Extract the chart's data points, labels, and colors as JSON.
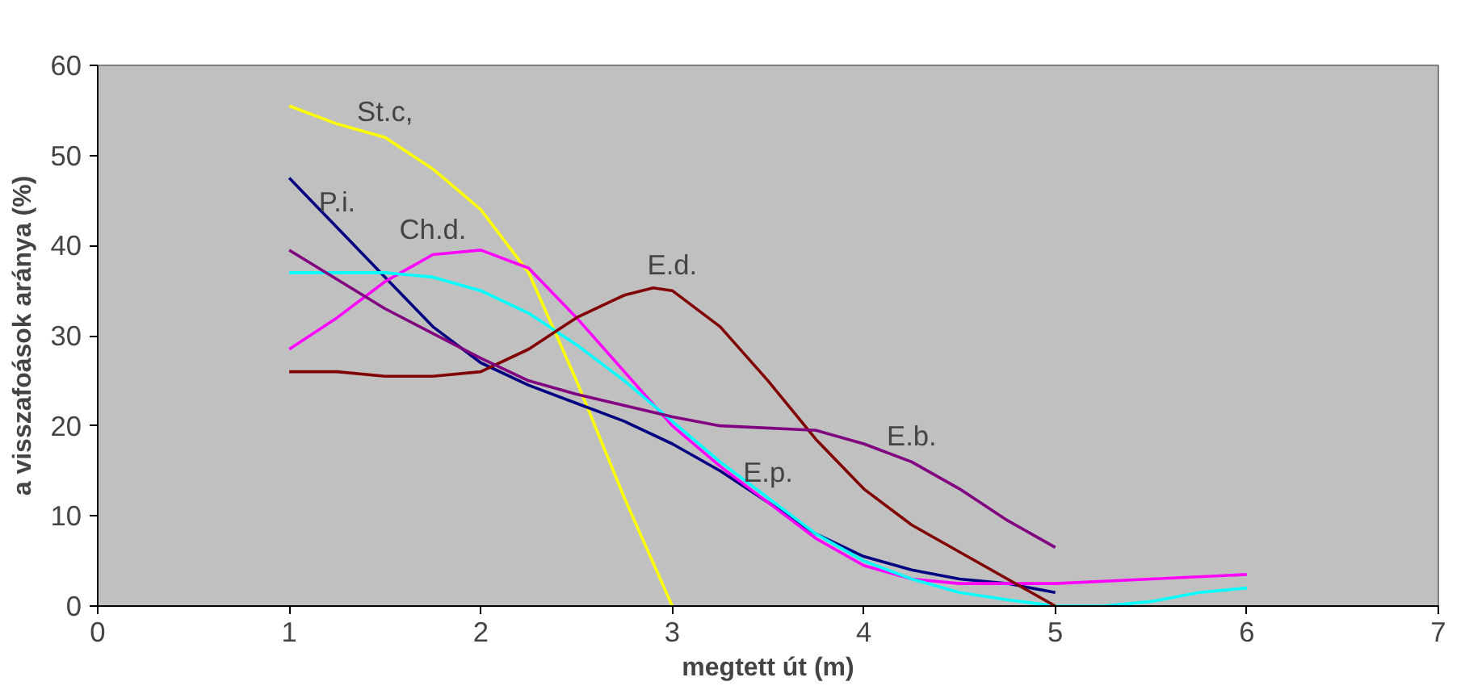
{
  "chart_data": {
    "type": "line",
    "xlabel": "megtett út (m)",
    "ylabel": "a visszafoások aránya (%)",
    "xlim": [
      0,
      7
    ],
    "xticks": [
      0,
      1,
      2,
      3,
      4,
      5,
      6,
      7
    ],
    "ylim": [
      0,
      60
    ],
    "yticks": [
      0,
      10,
      20,
      30,
      40,
      50,
      60
    ],
    "grid": false,
    "marker": "none",
    "line_style": "solid",
    "series": [
      {
        "color": "#ffff00",
        "x": [
          1,
          1.25,
          1.5,
          1.75,
          2,
          2.25,
          2.5,
          2.75,
          3
        ],
        "values": [
          55.5,
          53.5,
          52,
          48.5,
          44,
          37,
          25,
          12,
          0
        ]
      },
      {
        "color": "#000080",
        "x": [
          1,
          1.25,
          1.5,
          1.75,
          2,
          2.25,
          2.5,
          2.75,
          3,
          3.25,
          3.5,
          3.75,
          4,
          4.25,
          4.5,
          4.75,
          5
        ],
        "values": [
          47.5,
          42,
          36.5,
          31,
          27,
          24.5,
          22.5,
          20.5,
          18,
          15,
          11.5,
          8,
          5.5,
          4,
          3,
          2.5,
          1.5
        ]
      },
      {
        "color": "#ff00ff",
        "x": [
          1,
          1.25,
          1.5,
          1.75,
          2,
          2.25,
          2.5,
          2.75,
          3,
          3.25,
          3.5,
          3.75,
          4,
          4.25,
          4.5,
          5,
          5.5,
          6
        ],
        "values": [
          28.5,
          32,
          36,
          39,
          39.5,
          37.5,
          32,
          26,
          20,
          15.5,
          11.5,
          7.5,
          4.5,
          3,
          2.5,
          2.5,
          3,
          3.5
        ]
      },
      {
        "color": "#00ffff",
        "x": [
          1,
          1.5,
          1.75,
          2,
          2.25,
          2.5,
          2.75,
          3,
          3.25,
          3.5,
          3.75,
          4,
          4.25,
          4.5,
          4.75,
          5,
          5.25,
          5.5,
          5.75,
          6
        ],
        "values": [
          37,
          37,
          36.5,
          35,
          32.5,
          29,
          25,
          20.5,
          16,
          12,
          8,
          5,
          3,
          1.5,
          0.7,
          0,
          0,
          0.5,
          1.5,
          2
        ]
      },
      {
        "color": "#800000",
        "x": [
          1,
          1.25,
          1.5,
          1.75,
          2,
          2.25,
          2.5,
          2.75,
          2.9,
          3,
          3.25,
          3.5,
          3.75,
          4,
          4.25,
          4.5,
          4.75,
          5
        ],
        "values": [
          26,
          26,
          25.5,
          25.5,
          26,
          28.5,
          32,
          34.5,
          35.3,
          35,
          31,
          25,
          18.5,
          13,
          9,
          6,
          3,
          0
        ]
      },
      {
        "color": "#800080",
        "x": [
          1,
          1.5,
          2,
          2.25,
          2.5,
          3,
          3.25,
          3.75,
          4,
          4.25,
          4.5,
          4.75,
          5
        ],
        "values": [
          39.5,
          33,
          27.5,
          25,
          23.5,
          21,
          20,
          19.5,
          18,
          16,
          13,
          9.5,
          6.5
        ]
      }
    ],
    "annotations": [
      {
        "text": "St.c,",
        "x": 1.5,
        "y": 52
      },
      {
        "text": "P.i.",
        "x": 1.25,
        "y": 42
      },
      {
        "text": "Ch.d.",
        "x": 1.75,
        "y": 39
      },
      {
        "text": "E.d.",
        "x": 3,
        "y": 35
      },
      {
        "text": "E.b.",
        "x": 4.25,
        "y": 16
      },
      {
        "text": "E.p.",
        "x": 3.5,
        "y": 12
      }
    ]
  }
}
